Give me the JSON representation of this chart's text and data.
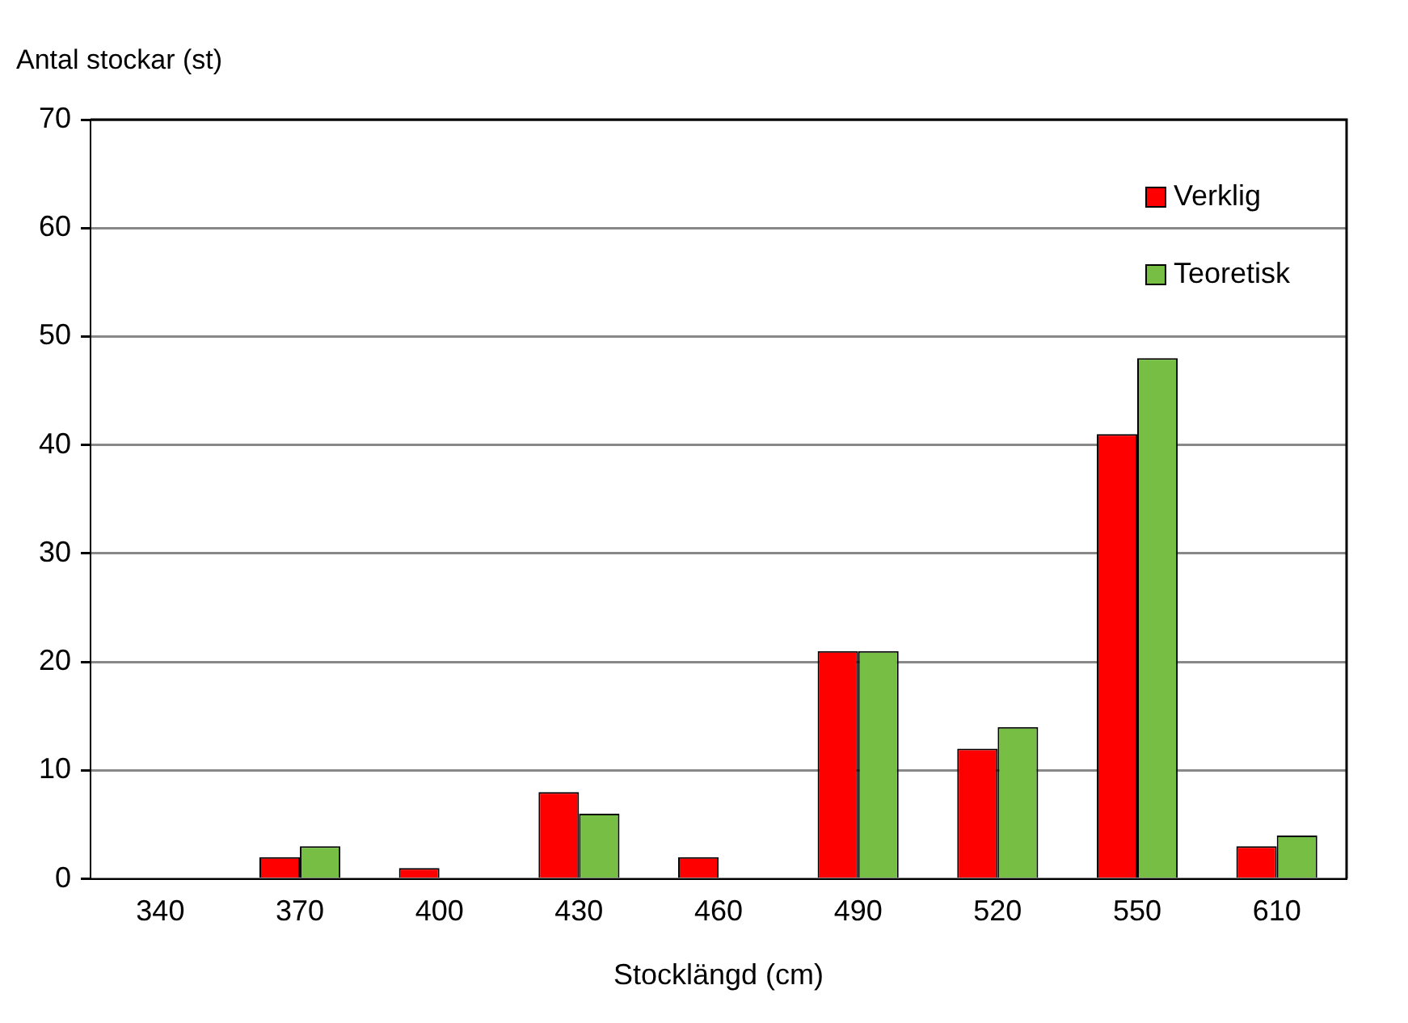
{
  "chart_data": {
    "type": "bar",
    "xlabel": "Stocklängd (cm)",
    "ylabel": "Antal stockar (st)",
    "categories": [
      "340",
      "370",
      "400",
      "430",
      "460",
      "490",
      "520",
      "550",
      "610"
    ],
    "series": [
      {
        "name": "Verklig",
        "color": "#ff0000",
        "values": [
          0,
          2,
          1,
          8,
          2,
          21,
          12,
          41,
          3
        ]
      },
      {
        "name": "Teoretisk",
        "color": "#77bf44",
        "values": [
          0,
          3,
          0,
          6,
          0,
          21,
          14,
          48,
          4
        ]
      }
    ],
    "ylim": [
      0,
      70
    ],
    "yticks": [
      0,
      10,
      20,
      30,
      40,
      50,
      60,
      70
    ],
    "grid": "y",
    "legend": "top right"
  }
}
